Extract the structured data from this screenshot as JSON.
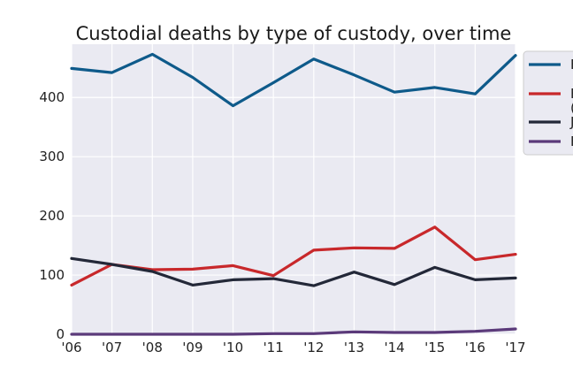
{
  "chart_data": {
    "type": "line",
    "title": "Custodial deaths by type of custody, over time",
    "xlabel": "",
    "ylabel": "",
    "x": [
      "'06",
      "'07",
      "'08",
      "'09",
      "'10",
      "'11",
      "'12",
      "'13",
      "'14",
      "'15",
      "'16",
      "'17"
    ],
    "yticks": [
      0,
      100,
      200,
      300,
      400
    ],
    "ylim": [
      0,
      490
    ],
    "grid": true,
    "legend_position": "right (outside, clipped)",
    "background": "#eaeaf2",
    "series": [
      {
        "color": "#0e5a8a",
        "legend_visible_text": "F",
        "values": [
          449,
          442,
          473,
          434,
          386,
          425,
          465,
          438,
          409,
          417,
          406,
          471
        ]
      },
      {
        "color": "#c8282b",
        "legend_visible_text": "F\n(",
        "values": [
          83,
          118,
          109,
          110,
          116,
          99,
          142,
          146,
          145,
          181,
          126,
          135
        ]
      },
      {
        "color": "#232838",
        "legend_visible_text": "J",
        "values": [
          128,
          118,
          106,
          83,
          92,
          94,
          82,
          105,
          84,
          113,
          92,
          95
        ]
      },
      {
        "color": "#5b3a7a",
        "legend_visible_text": "F",
        "values": [
          0,
          0,
          0,
          0,
          0,
          1,
          1,
          4,
          3,
          3,
          5,
          9
        ]
      }
    ]
  }
}
